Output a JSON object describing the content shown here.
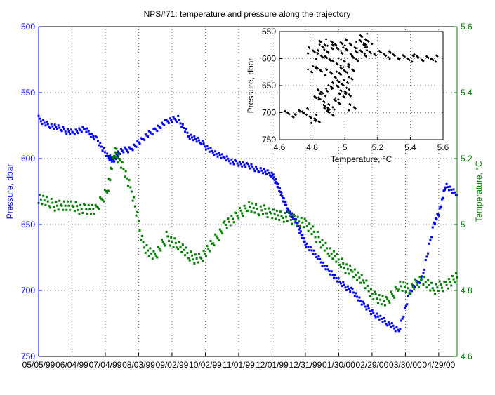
{
  "chart_data": [
    {
      "type": "scatter",
      "title": "NPS#71: temperature and pressure along the trajectory",
      "xlabel": "",
      "x_tick_labels": [
        "05/05/99",
        "06/04/99",
        "07/04/99",
        "08/03/99",
        "09/02/99",
        "10/02/99",
        "11/01/99",
        "12/01/99",
        "12/31/99",
        "01/30/00",
        "02/29/00",
        "03/30/00",
        "04/29/00"
      ],
      "xlim_days": [
        0,
        360
      ],
      "left_axis": {
        "label": "Pressure, dbar",
        "ylim": [
          500,
          750
        ],
        "reversed": true,
        "ticks": [
          500,
          550,
          600,
          650,
          700,
          750
        ],
        "color": "#0000ff"
      },
      "right_axis": {
        "label": "Temperature, °C",
        "ylim": [
          4.6,
          5.6
        ],
        "ticks": [
          "4.6",
          "4.8",
          "5",
          "5.2",
          "5.4",
          "5.6"
        ],
        "color": "#007f00"
      },
      "grid": true,
      "series": [
        {
          "axis": "left",
          "color": "#0000ff",
          "marker": "dot",
          "points": [
            [
              0,
              570
            ],
            [
              10,
              575
            ],
            [
              20,
              578
            ],
            [
              30,
              580
            ],
            [
              40,
              578
            ],
            [
              50,
              585
            ],
            [
              60,
              600
            ],
            [
              65,
              600
            ],
            [
              70,
              595
            ],
            [
              80,
              592
            ],
            [
              90,
              585
            ],
            [
              100,
              578
            ],
            [
              110,
              572
            ],
            [
              120,
              570
            ],
            [
              130,
              583
            ],
            [
              140,
              588
            ],
            [
              150,
              595
            ],
            [
              160,
              600
            ],
            [
              170,
              603
            ],
            [
              180,
              606
            ],
            [
              190,
              608
            ],
            [
              200,
              612
            ],
            [
              205,
              618
            ],
            [
              210,
              630
            ],
            [
              215,
              640
            ],
            [
              220,
              645
            ],
            [
              225,
              655
            ],
            [
              230,
              665
            ],
            [
              240,
              675
            ],
            [
              250,
              685
            ],
            [
              260,
              695
            ],
            [
              270,
              700
            ],
            [
              280,
              712
            ],
            [
              290,
              718
            ],
            [
              300,
              725
            ],
            [
              310,
              730
            ],
            [
              320,
              700
            ],
            [
              330,
              690
            ],
            [
              340,
              650
            ],
            [
              345,
              640
            ],
            [
              350,
              620
            ],
            [
              360,
              628
            ]
          ]
        },
        {
          "axis": "right",
          "color": "#007f00",
          "marker": "dot",
          "points": [
            [
              0,
              5.08
            ],
            [
              10,
              5.06
            ],
            [
              20,
              5.06
            ],
            [
              30,
              5.05
            ],
            [
              40,
              5.05
            ],
            [
              50,
              5.04
            ],
            [
              60,
              5.12
            ],
            [
              65,
              5.22
            ],
            [
              70,
              5.2
            ],
            [
              80,
              5.1
            ],
            [
              90,
              4.94
            ],
            [
              100,
              4.9
            ],
            [
              110,
              4.96
            ],
            [
              120,
              4.94
            ],
            [
              130,
              4.9
            ],
            [
              140,
              4.9
            ],
            [
              150,
              4.94
            ],
            [
              160,
              5.0
            ],
            [
              170,
              5.02
            ],
            [
              180,
              5.06
            ],
            [
              190,
              5.04
            ],
            [
              200,
              5.04
            ],
            [
              210,
              5.02
            ],
            [
              220,
              5.02
            ],
            [
              230,
              5.0
            ],
            [
              240,
              4.96
            ],
            [
              250,
              4.92
            ],
            [
              260,
              4.88
            ],
            [
              270,
              4.86
            ],
            [
              280,
              4.82
            ],
            [
              290,
              4.78
            ],
            [
              300,
              4.76
            ],
            [
              310,
              4.82
            ],
            [
              320,
              4.8
            ],
            [
              330,
              4.84
            ],
            [
              340,
              4.8
            ],
            [
              350,
              4.82
            ],
            [
              360,
              4.84
            ]
          ]
        }
      ]
    },
    {
      "type": "scatter",
      "xlabel": "Temperature, °C",
      "ylabel": "Pressure, dbar",
      "xlim": [
        4.6,
        5.6
      ],
      "ylim": [
        550,
        750
      ],
      "x_ticks": [
        "4.6",
        "4.8",
        "5",
        "5.2",
        "5.4",
        "5.6"
      ],
      "y_ticks": [
        "550",
        "600",
        "650",
        "700",
        "750"
      ],
      "y_reversed": true,
      "grid": true,
      "series": [
        {
          "color": "#000000",
          "marker": "dot",
          "points": [
            [
              4.66,
              703
            ],
            [
              4.72,
              700
            ],
            [
              4.76,
              698
            ],
            [
              4.8,
              710
            ],
            [
              4.82,
              715
            ],
            [
              4.84,
              670
            ],
            [
              4.86,
              675
            ],
            [
              4.88,
              690
            ],
            [
              4.9,
              690
            ],
            [
              4.92,
              700
            ],
            [
              4.95,
              680
            ],
            [
              4.97,
              670
            ],
            [
              5.0,
              660
            ],
            [
              5.02,
              665
            ],
            [
              5.04,
              690
            ],
            [
              4.8,
              620
            ],
            [
              4.85,
              620
            ],
            [
              4.9,
              625
            ],
            [
              4.95,
              630
            ],
            [
              5.0,
              620
            ],
            [
              4.8,
              585
            ],
            [
              4.85,
              580
            ],
            [
              4.9,
              585
            ],
            [
              4.95,
              580
            ],
            [
              5.0,
              585
            ],
            [
              5.05,
              590
            ],
            [
              5.1,
              585
            ],
            [
              5.15,
              590
            ],
            [
              5.2,
              590
            ],
            [
              5.25,
              592
            ],
            [
              5.3,
              595
            ],
            [
              5.35,
              598
            ],
            [
              5.4,
              600
            ],
            [
              5.45,
              598
            ],
            [
              5.5,
              600
            ],
            [
              5.55,
              600
            ],
            [
              4.86,
              570
            ],
            [
              4.92,
              572
            ],
            [
              5.0,
              570
            ],
            [
              5.05,
              575
            ],
            [
              5.1,
              570
            ],
            [
              5.14,
              573
            ],
            [
              5.12,
              560
            ],
            [
              5.06,
              600
            ],
            [
              5.0,
              610
            ],
            [
              4.95,
              605
            ],
            [
              4.9,
              600
            ],
            [
              4.84,
              595
            ],
            [
              5.02,
              640
            ],
            [
              4.98,
              645
            ],
            [
              4.94,
              650
            ],
            [
              4.9,
              655
            ],
            [
              4.86,
              660
            ],
            [
              5.04,
              620
            ]
          ]
        }
      ]
    }
  ]
}
